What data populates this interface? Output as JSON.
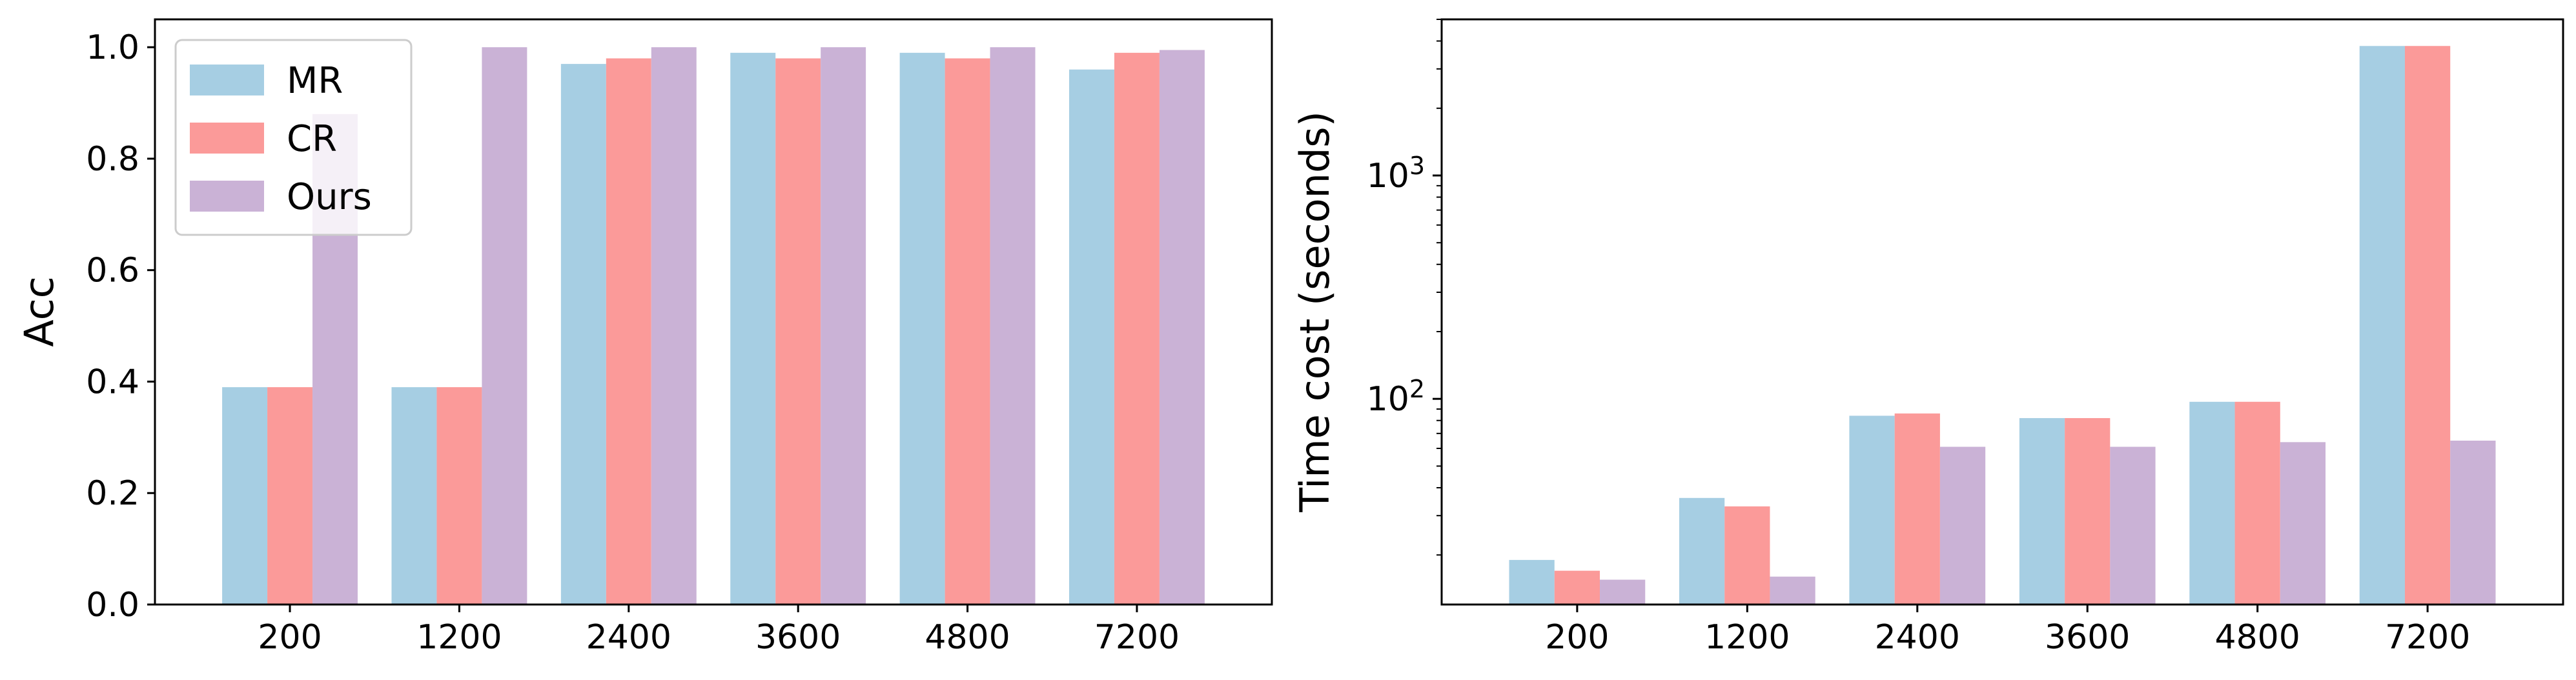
{
  "chart_data": [
    {
      "type": "bar",
      "title": "",
      "xlabel": "",
      "ylabel": "Acc",
      "categories": [
        "200",
        "1200",
        "2400",
        "3600",
        "4800",
        "7200"
      ],
      "ylim": [
        0,
        1.05
      ],
      "yticks": [
        0.0,
        0.2,
        0.4,
        0.6,
        0.8,
        1.0
      ],
      "ytick_labels": [
        "0.0",
        "0.2",
        "0.4",
        "0.6",
        "0.8",
        "1.0"
      ],
      "yscale": "linear",
      "legend_position": "upper-left",
      "grid": false,
      "series": [
        {
          "name": "MR",
          "color": "#a6cee3",
          "values": [
            0.39,
            0.39,
            0.97,
            0.99,
            0.99,
            0.96
          ]
        },
        {
          "name": "CR",
          "color": "#fb9a99",
          "values": [
            0.39,
            0.39,
            0.98,
            0.98,
            0.98,
            0.99
          ]
        },
        {
          "name": "Ours",
          "color": "#cab2d6",
          "values": [
            0.88,
            1.0,
            1.0,
            1.0,
            1.0,
            0.995
          ]
        }
      ]
    },
    {
      "type": "bar",
      "title": "",
      "xlabel": "",
      "ylabel": "Time cost (seconds)",
      "categories": [
        "200",
        "1200",
        "2400",
        "3600",
        "4800",
        "7200"
      ],
      "yscale": "log",
      "ylim": [
        12,
        5000
      ],
      "yticks": [
        100,
        1000
      ],
      "ytick_base": "10",
      "ytick_exponents": [
        "2",
        "3"
      ],
      "grid": false,
      "series": [
        {
          "name": "MR",
          "color": "#a6cee3",
          "values": [
            19,
            36,
            84,
            82,
            97,
            3800
          ]
        },
        {
          "name": "CR",
          "color": "#fb9a99",
          "values": [
            17,
            33,
            86,
            82,
            97,
            3800
          ]
        },
        {
          "name": "Ours",
          "color": "#cab2d6",
          "values": [
            15.5,
            16,
            61,
            61,
            64,
            65
          ]
        }
      ]
    }
  ]
}
